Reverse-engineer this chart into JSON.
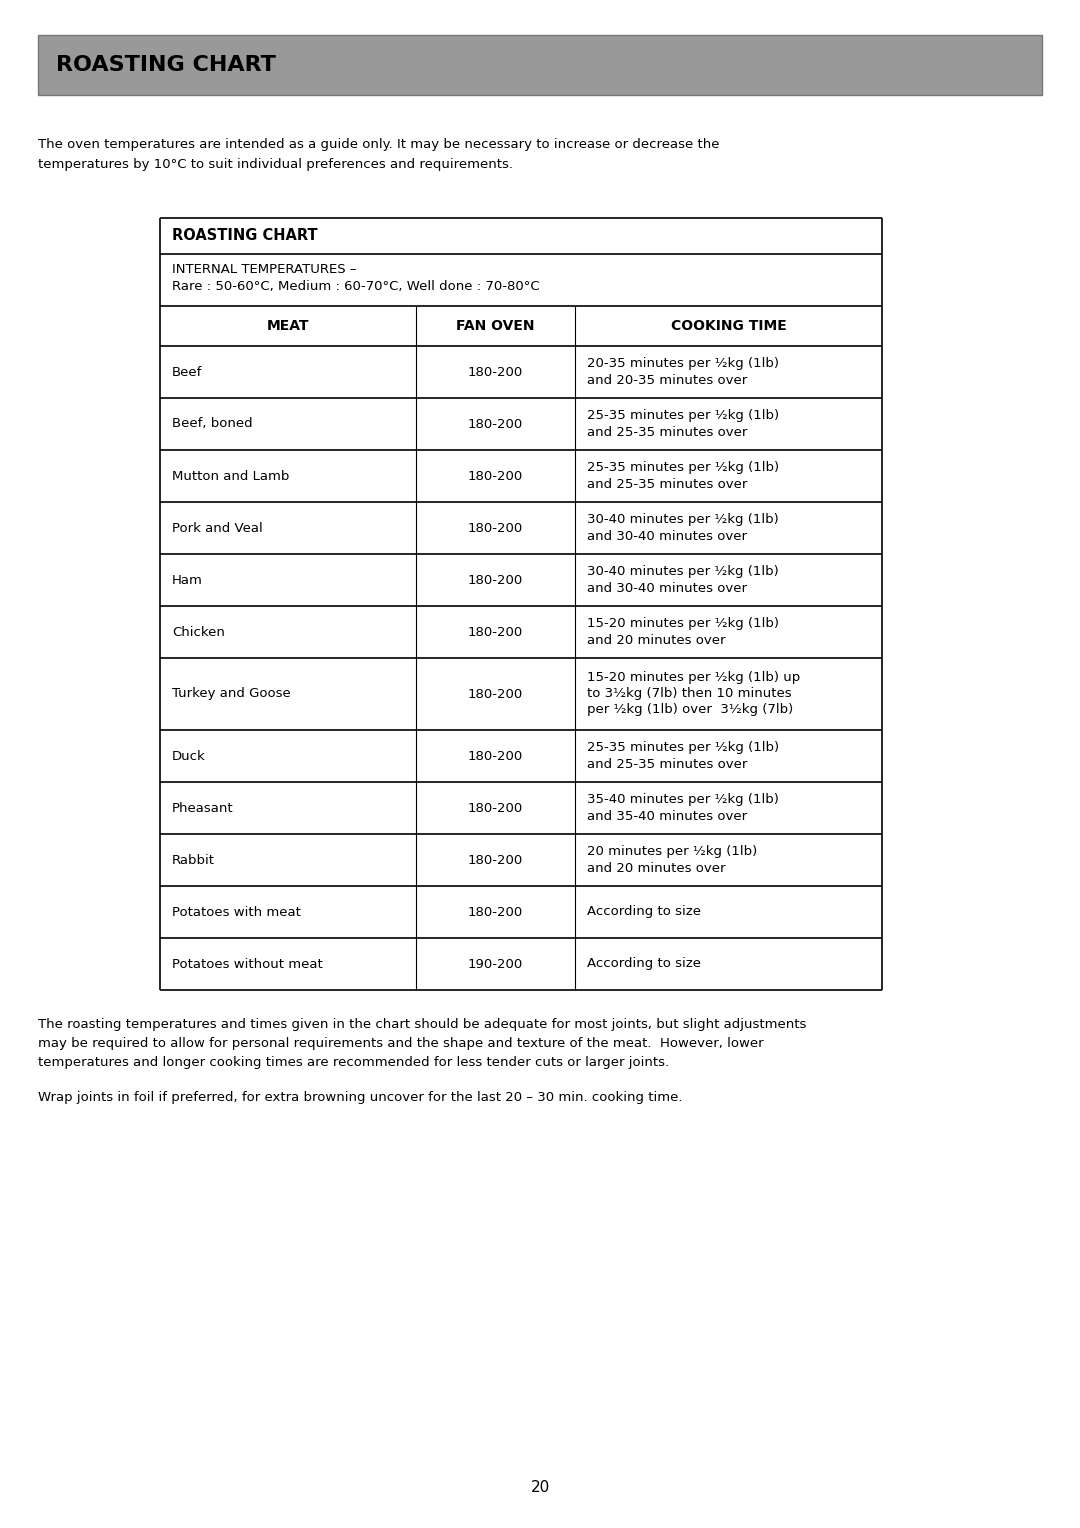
{
  "page_title": "ROASTING CHART",
  "header_bg": "#999999",
  "intro_lines": [
    "The oven temperatures are intended as a guide only. It may be necessary to increase or decrease the",
    "temperatures by 10°C to suit individual preferences and requirements."
  ],
  "table_title": "ROASTING CHART",
  "internal_temp_line1": "INTERNAL TEMPERATURES –",
  "internal_temp_line2": "Rare : 50-60°C, Medium : 60-70°C, Well done : 70-80°C",
  "col_headers": [
    "MEAT",
    "FAN OVEN",
    "COOKING TIME"
  ],
  "rows": [
    [
      "Beef",
      "180-200",
      "20-35 minutes per ½kg (1lb)\nand 20-35 minutes over"
    ],
    [
      "Beef, boned",
      "180-200",
      "25-35 minutes per ½kg (1lb)\nand 25-35 minutes over"
    ],
    [
      "Mutton and Lamb",
      "180-200",
      "25-35 minutes per ½kg (1lb)\nand 25-35 minutes over"
    ],
    [
      "Pork and Veal",
      "180-200",
      "30-40 minutes per ½kg (1lb)\nand 30-40 minutes over"
    ],
    [
      "Ham",
      "180-200",
      "30-40 minutes per ½kg (1lb)\nand 30-40 minutes over"
    ],
    [
      "Chicken",
      "180-200",
      "15-20 minutes per ½kg (1lb)\nand 20 minutes over"
    ],
    [
      "Turkey and Goose",
      "180-200",
      "15-20 minutes per ½kg (1lb) up\nto 3½kg (7lb) then 10 minutes\nper ½kg (1lb) over  3½kg (7lb)"
    ],
    [
      "Duck",
      "180-200",
      "25-35 minutes per ½kg (1lb)\nand 25-35 minutes over"
    ],
    [
      "Pheasant",
      "180-200",
      "35-40 minutes per ½kg (1lb)\nand 35-40 minutes over"
    ],
    [
      "Rabbit",
      "180-200",
      "20 minutes per ½kg (1lb)\nand 20 minutes over"
    ],
    [
      "Potatoes with meat",
      "180-200",
      "According to size"
    ],
    [
      "Potatoes without meat",
      "190-200",
      "According to size"
    ]
  ],
  "footer_lines1": [
    "The roasting temperatures and times given in the chart should be adequate for most joints, but slight adjustments",
    "may be required to allow for personal requirements and the shape and texture of the meat.  However, lower",
    "temperatures and longer cooking times are recommended for less tender cuts or larger joints."
  ],
  "footer_text2": "Wrap joints in foil if preferred, for extra browning uncover for the last 20 – 30 min. cooking time.",
  "page_number": "20",
  "bg_color": "#ffffff",
  "text_color": "#000000",
  "table_border_color": "#000000"
}
